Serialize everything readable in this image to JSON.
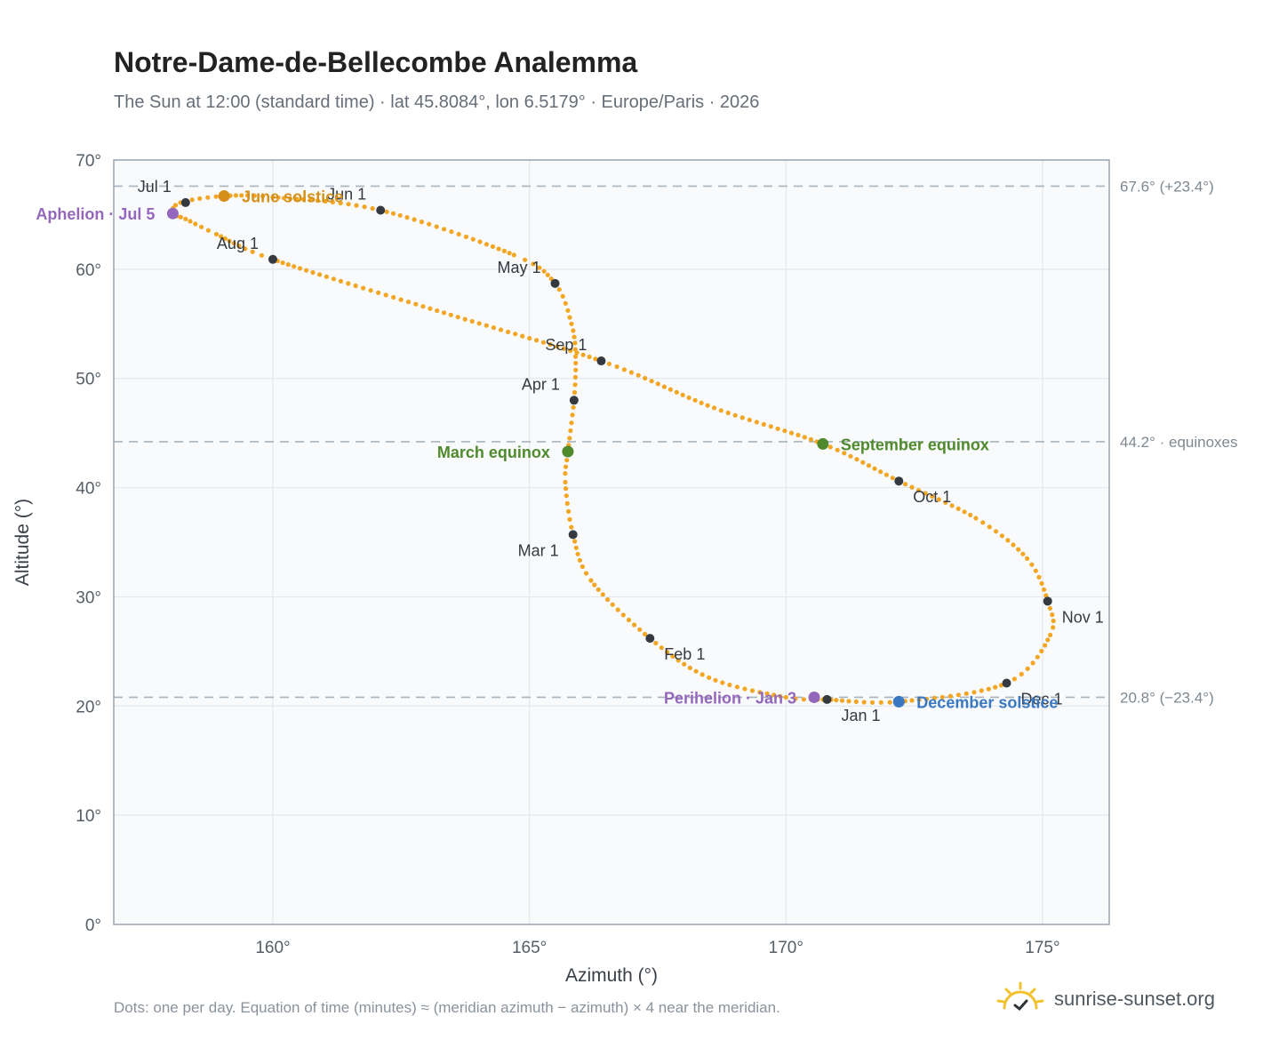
{
  "header": {
    "title": "Notre-Dame-de-Bellecombe Analemma",
    "subtitle": "The Sun at 12:00 (standard time) · lat 45.8084°, lon 6.5179° · Europe/Paris · 2026"
  },
  "footer": {
    "note": "Dots: one per day. Equation of time (minutes) ≈ (meridian azimuth − azimuth) × 4 near the meridian.",
    "brand": "sunrise-sunset.org"
  },
  "colors": {
    "path": "#f2a623",
    "month_marker": "#343a40",
    "solstice_june": "#d4901a",
    "equinox": "#4f8a2c",
    "solstice_december": "#3a78c2",
    "apsis": "#9467bd",
    "reference_line": "#a9b3bb",
    "plot_background": "#f8fafc",
    "grid": "#e3e8ee"
  },
  "chart_data": {
    "type": "scatter",
    "title": "Notre-Dame-de-Bellecombe Analemma",
    "xlabel": "Azimuth (°)",
    "ylabel": "Altitude (°)",
    "xlim": [
      156.9,
      176.3
    ],
    "ylim": [
      0,
      70
    ],
    "x_ticks": [
      160,
      165,
      170,
      175
    ],
    "x_tick_labels": [
      "160°",
      "165°",
      "170°",
      "175°"
    ],
    "y_ticks": [
      0,
      10,
      20,
      30,
      40,
      50,
      60,
      70
    ],
    "y_tick_labels": [
      "0°",
      "10°",
      "20°",
      "30°",
      "40°",
      "50°",
      "60°",
      "70°"
    ],
    "grid": true,
    "path_anchors": [
      {
        "x": 170.8,
        "y": 20.6
      },
      {
        "x": 170.0,
        "y": 20.8
      },
      {
        "x": 168.5,
        "y": 22.6
      },
      {
        "x": 167.35,
        "y": 26.2
      },
      {
        "x": 166.2,
        "y": 31.5
      },
      {
        "x": 165.85,
        "y": 35.7
      },
      {
        "x": 165.7,
        "y": 40.5
      },
      {
        "x": 165.75,
        "y": 43.3
      },
      {
        "x": 165.87,
        "y": 48.0
      },
      {
        "x": 165.9,
        "y": 52.0
      },
      {
        "x": 165.82,
        "y": 55.0
      },
      {
        "x": 165.5,
        "y": 58.7
      },
      {
        "x": 164.7,
        "y": 61.3
      },
      {
        "x": 162.1,
        "y": 65.4
      },
      {
        "x": 160.0,
        "y": 66.6
      },
      {
        "x": 159.05,
        "y": 66.7
      },
      {
        "x": 158.2,
        "y": 66.1
      },
      {
        "x": 158.05,
        "y": 65.1
      },
      {
        "x": 158.3,
        "y": 64.6
      },
      {
        "x": 158.9,
        "y": 63.2
      },
      {
        "x": 160.0,
        "y": 60.9
      },
      {
        "x": 163.2,
        "y": 56.2
      },
      {
        "x": 166.4,
        "y": 51.6
      },
      {
        "x": 168.6,
        "y": 47.3
      },
      {
        "x": 170.72,
        "y": 44.0
      },
      {
        "x": 172.2,
        "y": 40.6
      },
      {
        "x": 173.7,
        "y": 37.2
      },
      {
        "x": 174.7,
        "y": 33.5
      },
      {
        "x": 175.1,
        "y": 29.6
      },
      {
        "x": 175.15,
        "y": 26.5
      },
      {
        "x": 174.3,
        "y": 22.1
      },
      {
        "x": 172.2,
        "y": 20.4
      },
      {
        "x": 170.8,
        "y": 20.6
      }
    ],
    "month_markers": [
      {
        "label": "Jan 1",
        "x": 170.8,
        "y": 20.6,
        "anchor": "below-right"
      },
      {
        "label": "Feb 1",
        "x": 167.35,
        "y": 26.2,
        "anchor": "below-right"
      },
      {
        "label": "Mar 1",
        "x": 165.85,
        "y": 35.7,
        "anchor": "below-left"
      },
      {
        "label": "Apr 1",
        "x": 165.87,
        "y": 48.0,
        "anchor": "above-left"
      },
      {
        "label": "May 1",
        "x": 165.5,
        "y": 58.7,
        "anchor": "above-left"
      },
      {
        "label": "Jun 1",
        "x": 162.1,
        "y": 65.4,
        "anchor": "above-left"
      },
      {
        "label": "Jul 1",
        "x": 158.3,
        "y": 66.1,
        "anchor": "above-left"
      },
      {
        "label": "Aug 1",
        "x": 160.0,
        "y": 60.9,
        "anchor": "above-left"
      },
      {
        "label": "Sep 1",
        "x": 166.4,
        "y": 51.6,
        "anchor": "above-left"
      },
      {
        "label": "Oct 1",
        "x": 172.2,
        "y": 40.6,
        "anchor": "below-right"
      },
      {
        "label": "Nov 1",
        "x": 175.1,
        "y": 29.6,
        "anchor": "below-right"
      },
      {
        "label": "Dec 1",
        "x": 174.3,
        "y": 22.1,
        "anchor": "below-right"
      }
    ],
    "special_points": [
      {
        "label": "June solstice",
        "x": 159.05,
        "y": 66.7,
        "color": "#d4901a",
        "side": "right"
      },
      {
        "label": "March equinox",
        "x": 165.75,
        "y": 43.3,
        "color": "#4f8a2c",
        "side": "left"
      },
      {
        "label": "September equinox",
        "x": 170.72,
        "y": 44.0,
        "color": "#4f8a2c",
        "side": "right"
      },
      {
        "label": "December solstice",
        "x": 172.2,
        "y": 20.4,
        "color": "#3a78c2",
        "side": "right"
      },
      {
        "label": "Aphelion · Jul 5",
        "x": 158.05,
        "y": 65.1,
        "color": "#9467bd",
        "side": "left"
      },
      {
        "label": "Perihelion · Jan 3",
        "x": 170.55,
        "y": 20.8,
        "color": "#9467bd",
        "side": "left"
      }
    ],
    "reference_lines": [
      {
        "y": 67.6,
        "label": "67.6° (+23.4°)"
      },
      {
        "y": 44.2,
        "label": "44.2° · equinoxes"
      },
      {
        "y": 20.8,
        "label": "20.8° (−23.4°)"
      }
    ]
  }
}
